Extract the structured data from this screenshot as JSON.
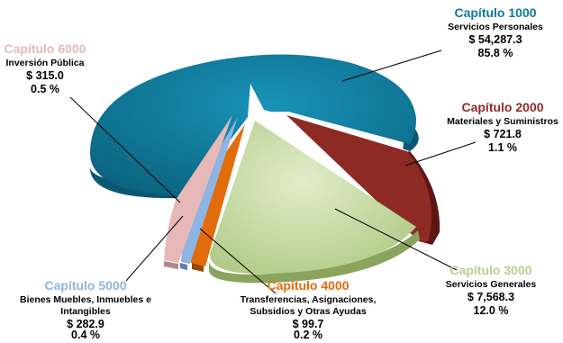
{
  "chart_data": {
    "type": "pie",
    "title": "",
    "unit_prefix": "$",
    "slices": [
      {
        "key": "c1000",
        "chapter": "Capítulo 1000",
        "description": "Servicios Personales",
        "amount": "$ 54,287.3",
        "percent": "85.8 %",
        "value": 54287.3,
        "color": "#0e7a9a"
      },
      {
        "key": "c2000",
        "chapter": "Capítulo 2000",
        "description": "Materiales y Suministros",
        "amount": "$ 721.8",
        "percent": "1.1 %",
        "value": 721.8,
        "color": "#8e2a24"
      },
      {
        "key": "c3000",
        "chapter": "Capítulo 3000",
        "description": "Servicios Generales",
        "amount": "$ 7,568.3",
        "percent": "12.0 %",
        "value": 7568.3,
        "color": "#c5d9a0"
      },
      {
        "key": "c4000",
        "chapter": "Capítulo 4000",
        "description": "Transferencias, Asignaciones, Subsidios y Otras Ayudas",
        "amount": "$ 99.7",
        "percent": "0.2 %",
        "value": 99.7,
        "color": "#e36c0a"
      },
      {
        "key": "c5000",
        "chapter": "Capítulo 5000",
        "description": "Bienes Muebles, Inmuebles e Intangibles",
        "amount": "$ 282.9",
        "percent": "0.4 %",
        "value": 282.9,
        "color": "#8eb4e3"
      },
      {
        "key": "c6000",
        "chapter": "Capítulo 6000",
        "description": "Inversión Pública",
        "amount": "$ 315.0",
        "percent": "0.5 %",
        "value": 315.0,
        "color": "#e6b9b8"
      }
    ]
  }
}
